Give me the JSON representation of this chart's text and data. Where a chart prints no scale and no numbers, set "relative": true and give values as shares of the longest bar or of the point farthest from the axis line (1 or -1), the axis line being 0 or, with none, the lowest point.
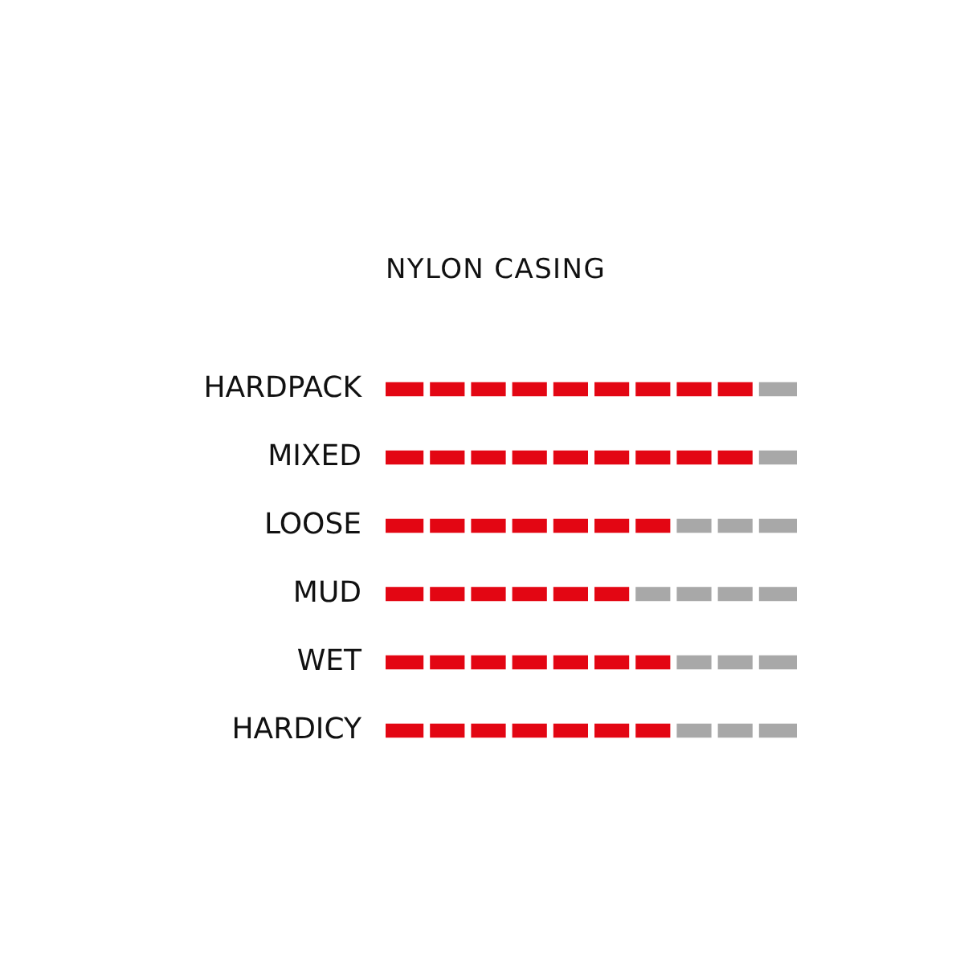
{
  "chart_data": {
    "type": "bar",
    "orientation": "horizontal",
    "stacked": true,
    "relative": true,
    "title": "NYLON CASING",
    "categories": [
      "HARDPACK",
      "MIXED",
      "LOOSE",
      "MUD",
      "WET",
      "HARDICY"
    ],
    "series": [
      {
        "color": "#e30613",
        "values": [
          0.9,
          0.9,
          0.7,
          0.6,
          0.7,
          0.7
        ]
      },
      {
        "color": "#a8a8a8",
        "values": [
          0.1,
          0.1,
          0.3,
          0.4,
          0.3,
          0.3
        ]
      }
    ],
    "grid": false,
    "legend": false
  }
}
